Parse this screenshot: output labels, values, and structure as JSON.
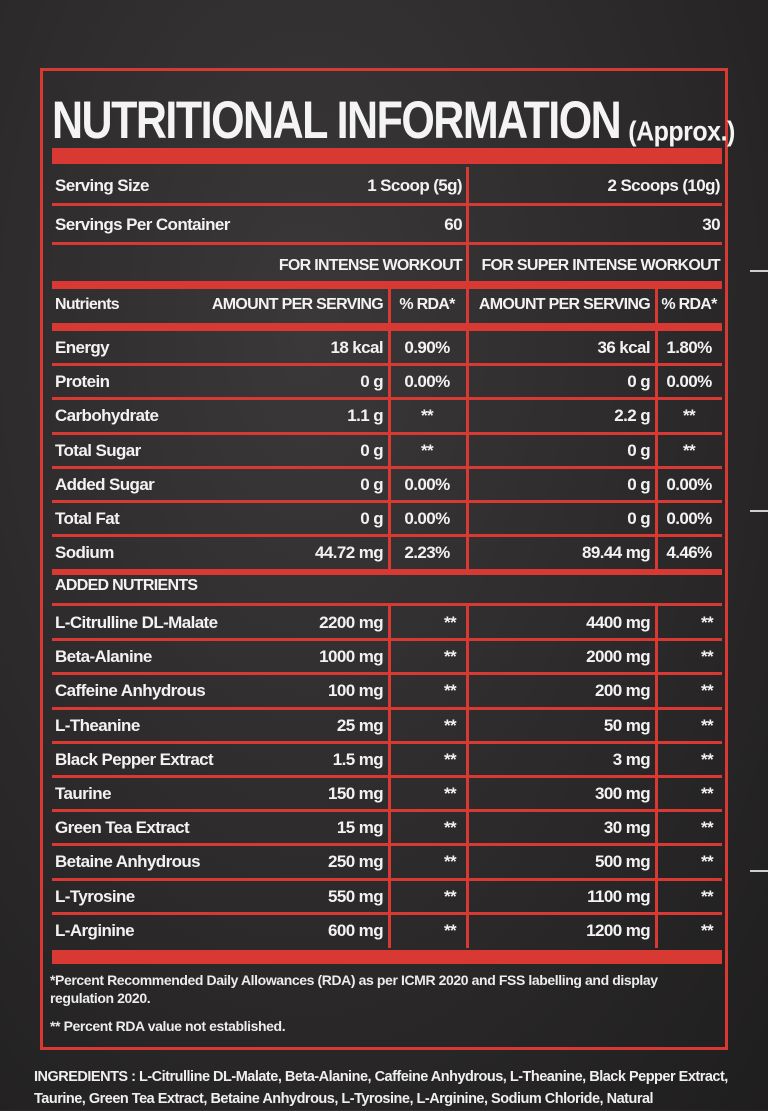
{
  "title": "NUTRITIONAL INFORMATION",
  "title_suffix": "(Approx.)",
  "serving_size": {
    "label": "Serving Size",
    "col1": "1 Scoop (5g)",
    "col2": "2 Scoops (10g)"
  },
  "servings_per_container": {
    "label": "Servings Per Container",
    "col1": "60",
    "col2": "30"
  },
  "workout_headers": {
    "col1": "FOR INTENSE WORKOUT",
    "col2": "FOR SUPER INTENSE WORKOUT"
  },
  "column_headers": {
    "nutrients": "Nutrients",
    "amount1": "AMOUNT PER SERVING",
    "rda1": "% RDA*",
    "amount2": "AMOUNT PER SERVING",
    "rda2": "% RDA*"
  },
  "nutrients": [
    {
      "name": "Energy",
      "amount1": "18 kcal",
      "rda1": "0.90%",
      "amount2": "36 kcal",
      "rda2": "1.80%"
    },
    {
      "name": "Protein",
      "amount1": "0 g",
      "rda1": "0.00%",
      "amount2": "0 g",
      "rda2": "0.00%"
    },
    {
      "name": "Carbohydrate",
      "amount1": "1.1 g",
      "rda1": "**",
      "amount2": "2.2 g",
      "rda2": "**"
    },
    {
      "name": "Total Sugar",
      "amount1": "0 g",
      "rda1": "**",
      "amount2": "0 g",
      "rda2": "**"
    },
    {
      "name": "Added Sugar",
      "amount1": "0 g",
      "rda1": "0.00%",
      "amount2": "0 g",
      "rda2": "0.00%"
    },
    {
      "name": "Total Fat",
      "amount1": "0 g",
      "rda1": "0.00%",
      "amount2": "0 g",
      "rda2": "0.00%"
    },
    {
      "name": "Sodium",
      "amount1": "44.72 mg",
      "rda1": "2.23%",
      "amount2": "89.44 mg",
      "rda2": "4.46%"
    }
  ],
  "added_nutrients_label": "ADDED NUTRIENTS",
  "added_nutrients": [
    {
      "name": "L-Citrulline DL-Malate",
      "amount1": "2200 mg",
      "rda1": "**",
      "amount2": "4400 mg",
      "rda2": "**"
    },
    {
      "name": "Beta-Alanine",
      "amount1": "1000 mg",
      "rda1": "**",
      "amount2": "2000 mg",
      "rda2": "**"
    },
    {
      "name": "Caffeine Anhydrous",
      "amount1": "100 mg",
      "rda1": "**",
      "amount2": "200 mg",
      "rda2": "**"
    },
    {
      "name": "L-Theanine",
      "amount1": "25 mg",
      "rda1": "**",
      "amount2": "50 mg",
      "rda2": "**"
    },
    {
      "name": "Black Pepper Extract",
      "amount1": "1.5 mg",
      "rda1": "**",
      "amount2": "3 mg",
      "rda2": "**"
    },
    {
      "name": "Taurine",
      "amount1": "150 mg",
      "rda1": "**",
      "amount2": "300 mg",
      "rda2": "**"
    },
    {
      "name": "Green Tea Extract",
      "amount1": "15 mg",
      "rda1": "**",
      "amount2": "30 mg",
      "rda2": "**"
    },
    {
      "name": "Betaine Anhydrous",
      "amount1": "250 mg",
      "rda1": "**",
      "amount2": "500 mg",
      "rda2": "**"
    },
    {
      "name": "L-Tyrosine",
      "amount1": "550 mg",
      "rda1": "**",
      "amount2": "1100 mg",
      "rda2": "**"
    },
    {
      "name": "L-Arginine",
      "amount1": "600 mg",
      "rda1": "**",
      "amount2": "1200 mg",
      "rda2": "**"
    }
  ],
  "footnote1": "*Percent Recommended Daily Allowances (RDA) as per ICMR 2020 and FSS labelling and display regulation 2020.",
  "footnote2": "** Percent RDA value not established.",
  "ingredients_label": "INGREDIENTS :",
  "ingredients_text": "L-Citrulline DL-Malate, Beta-Alanine, Caffeine Anhydrous, L-Theanine, Black Pepper Extract, Taurine, Green Tea Extract, Betaine Anhydrous, L-Tyrosine, L-Arginine, Sodium Chloride, Natural",
  "colors": {
    "accent": "#d83a33",
    "background": "#2e2c2c",
    "text": "#f2f2f2"
  }
}
